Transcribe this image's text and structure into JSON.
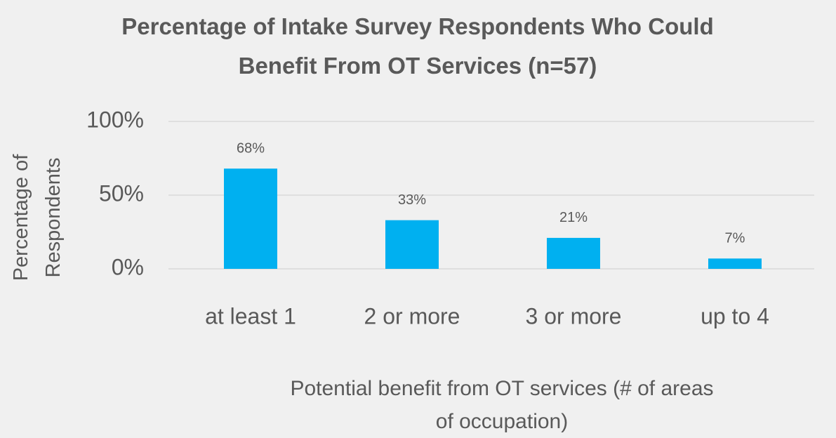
{
  "chart_data": {
    "type": "bar",
    "title": "Percentage of Intake Survey Respondents Who Could Benefit From OT Services (n=57)",
    "x_label": "Potential benefit from OT services (# of areas of occupation)",
    "y_label": "Percentage of Respondents",
    "categories": [
      "at least 1",
      "2 or more",
      "3 or more",
      "up to 4"
    ],
    "values": [
      68,
      33,
      21,
      7
    ],
    "value_labels": [
      "68%",
      "33%",
      "21%",
      "7%"
    ],
    "color": "#00b0f0",
    "ylim": [
      0,
      100
    ],
    "yticks": [
      {
        "value": 0,
        "label": "0%"
      },
      {
        "value": 50,
        "label": "50%"
      },
      {
        "value": 100,
        "label": "100%"
      }
    ],
    "grid": true
  }
}
